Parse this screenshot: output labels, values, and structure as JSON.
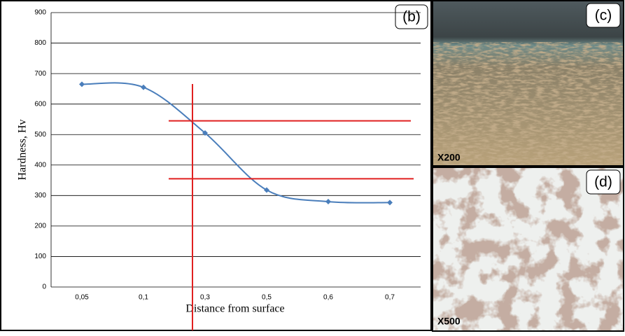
{
  "chart_data": {
    "type": "line",
    "panel_label": "(b)",
    "x_label": "Distance from surface",
    "y_label": "Hardness, Hv",
    "categories": [
      "0,05",
      "0,1",
      "0,3",
      "0,5",
      "0,6",
      "0,7"
    ],
    "values": [
      665,
      655,
      505,
      318,
      280,
      277
    ],
    "color": "#4a7ebb",
    "smooth": true,
    "ylim": [
      0,
      900
    ],
    "yticks": [
      0,
      100,
      200,
      300,
      400,
      500,
      600,
      700,
      800,
      900
    ],
    "grid": true,
    "hlines": [
      545,
      355
    ],
    "hline_color": "#e02020"
  },
  "micrographs": [
    {
      "label": "(c)",
      "magnification": "X200"
    },
    {
      "label": "(d)",
      "magnification": "X500"
    }
  ]
}
